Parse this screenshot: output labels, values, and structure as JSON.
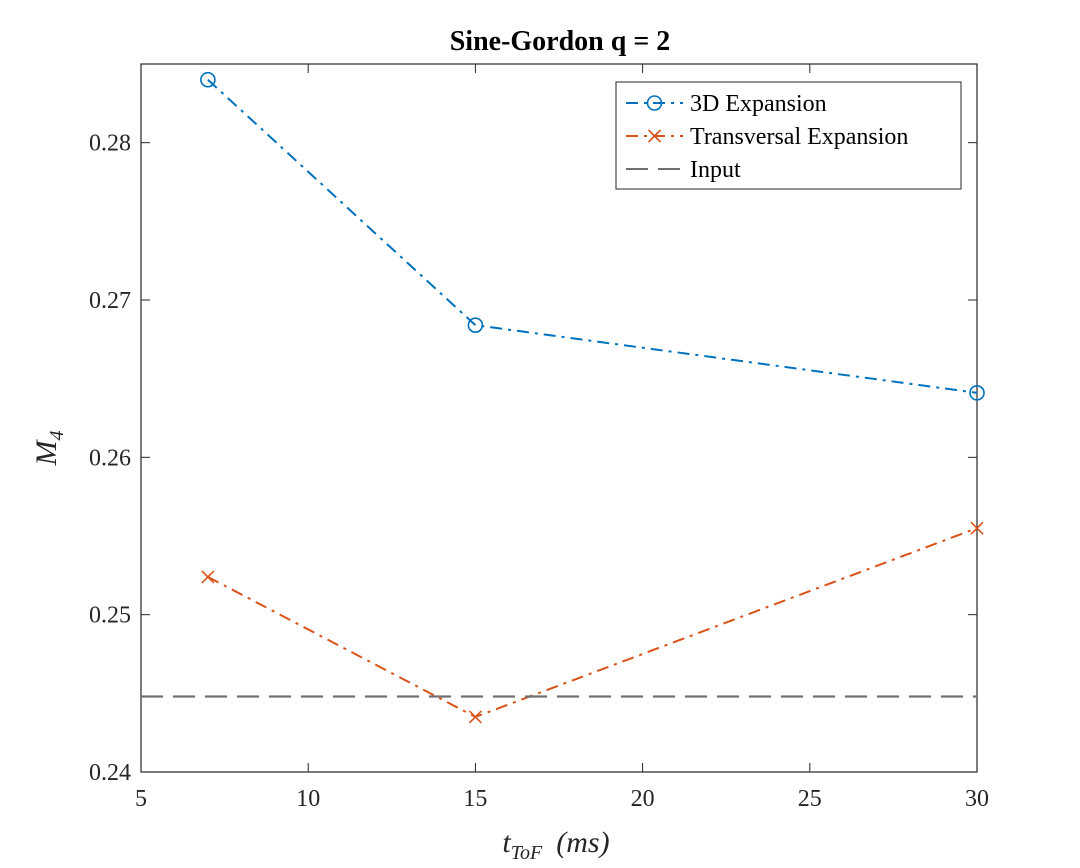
{
  "chart_data": {
    "type": "line",
    "title": "Sine-Gordon q = 2",
    "xlabel": {
      "main": "t",
      "sub": "ToF",
      "unit": "(ms)"
    },
    "ylabel": {
      "main": "M",
      "sub": "4"
    },
    "xlim": [
      5,
      30
    ],
    "ylim": [
      0.24,
      0.285
    ],
    "xticks": [
      5,
      10,
      15,
      20,
      25,
      30
    ],
    "yticks": [
      0.24,
      0.25,
      0.26,
      0.27,
      0.28
    ],
    "ytick_labels": [
      "0.24",
      "0.25",
      "0.26",
      "0.27",
      "0.28"
    ],
    "grid": false,
    "legend_position": "top-right",
    "series": [
      {
        "name": "3D Expansion",
        "x": [
          7,
          15,
          30
        ],
        "y": [
          0.284,
          0.2684,
          0.2641
        ],
        "color": "#0072BD",
        "marker": "circle",
        "linestyle": "dash-dot"
      },
      {
        "name": "Transversal Expansion",
        "x": [
          7,
          15,
          30
        ],
        "y": [
          0.2524,
          0.2435,
          0.2555
        ],
        "color": "#D95319",
        "marker": "x",
        "linestyle": "dash-dot"
      },
      {
        "name": "Input",
        "y_const": 0.2448,
        "color": "#707070",
        "marker": "none",
        "linestyle": "dashed"
      }
    ]
  }
}
